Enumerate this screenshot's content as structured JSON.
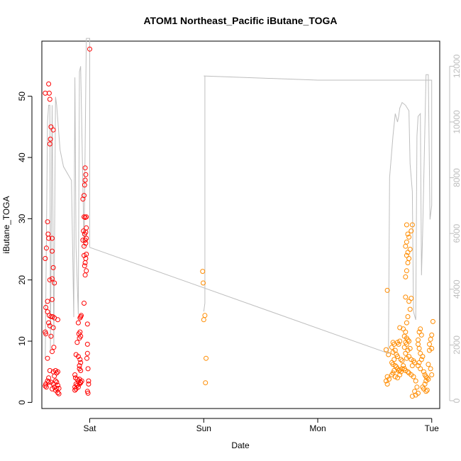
{
  "chart_data": {
    "type": "scatter",
    "title": "ATOM1 Northeast_Pacific iButane_TOGA",
    "xlabel": "Date",
    "ylabel": "iButane_TOGA",
    "x_ticks": [
      "Sat",
      "Sun",
      "Mon",
      "Tue"
    ],
    "x_range_days": [
      -0.42,
      3.07
    ],
    "ylim": [
      -1,
      59
    ],
    "y_ticks": [
      0,
      10,
      20,
      30,
      40,
      50
    ],
    "y2lim": [
      -280,
      12900
    ],
    "y2_ticks": [
      0,
      2000,
      4000,
      6000,
      8000,
      10000,
      12000
    ],
    "y2_color": "#bdbdbd",
    "colors": {
      "red_series": "#ff0000",
      "orange_series": "#ff8c00",
      "line": "#bebebe"
    },
    "series": [
      {
        "color": "#ff0000",
        "points": [
          [
            -0.39,
            50.5
          ],
          [
            -0.36,
            52.0
          ],
          [
            -0.355,
            50.5
          ],
          [
            -0.35,
            49.5
          ],
          [
            -0.34,
            45
          ],
          [
            -0.345,
            43
          ],
          [
            -0.35,
            42.2
          ],
          [
            -0.32,
            44.5
          ],
          [
            -0.37,
            29.5
          ],
          [
            -0.365,
            27.5
          ],
          [
            -0.36,
            26.8
          ],
          [
            -0.33,
            26.8
          ],
          [
            -0.38,
            25.2
          ],
          [
            -0.33,
            24.7
          ],
          [
            -0.39,
            23.5
          ],
          [
            -0.32,
            22.0
          ],
          [
            -0.33,
            20.2
          ],
          [
            -0.35,
            20.0
          ],
          [
            -0.31,
            19.5
          ],
          [
            -0.33,
            16.8
          ],
          [
            -0.37,
            16.5
          ],
          [
            -0.385,
            15.5
          ],
          [
            -0.37,
            14.8
          ],
          [
            -0.355,
            14.2
          ],
          [
            -0.34,
            14.0
          ],
          [
            -0.325,
            14.0
          ],
          [
            -0.31,
            13.8
          ],
          [
            -0.28,
            13.5
          ],
          [
            -0.36,
            13.0
          ],
          [
            -0.35,
            12.5
          ],
          [
            -0.32,
            12.2
          ],
          [
            -0.39,
            11.5
          ],
          [
            -0.385,
            11.2
          ],
          [
            -0.34,
            10.8
          ],
          [
            -0.33,
            8.3
          ],
          [
            -0.315,
            9.0
          ],
          [
            -0.37,
            7.2
          ],
          [
            -0.35,
            5.2
          ],
          [
            -0.32,
            5.0
          ],
          [
            -0.3,
            5.2
          ],
          [
            -0.29,
            4.8
          ],
          [
            -0.28,
            5.0
          ],
          [
            -0.31,
            4.3
          ],
          [
            -0.36,
            4.0
          ],
          [
            -0.37,
            3.5
          ],
          [
            -0.385,
            3.0
          ],
          [
            -0.39,
            2.7
          ],
          [
            -0.38,
            2.5
          ],
          [
            -0.36,
            3.3
          ],
          [
            -0.34,
            3.3
          ],
          [
            -0.32,
            3.0
          ],
          [
            -0.3,
            3.5
          ],
          [
            -0.29,
            3.3
          ],
          [
            -0.28,
            2.8
          ],
          [
            -0.31,
            2.5
          ],
          [
            -0.33,
            2.2
          ],
          [
            -0.3,
            2.0
          ],
          [
            -0.29,
            2.3
          ],
          [
            -0.27,
            2.3
          ],
          [
            -0.28,
            1.6
          ],
          [
            -0.27,
            1.4
          ],
          [
            -0.13,
            4.5
          ],
          [
            -0.125,
            4.0
          ],
          [
            -0.11,
            3.8
          ],
          [
            -0.1,
            3.5
          ],
          [
            -0.09,
            3.8
          ],
          [
            -0.08,
            3.3
          ],
          [
            -0.12,
            3.0
          ],
          [
            -0.11,
            2.8
          ],
          [
            -0.13,
            2.5
          ],
          [
            -0.12,
            2.2
          ],
          [
            -0.1,
            2.5
          ],
          [
            -0.09,
            3.0
          ],
          [
            -0.08,
            3.2
          ],
          [
            -0.07,
            3.5
          ],
          [
            -0.13,
            2.0
          ],
          [
            -0.09,
            6.0
          ],
          [
            -0.08,
            6.5
          ],
          [
            -0.085,
            7.0
          ],
          [
            -0.1,
            7.5
          ],
          [
            -0.12,
            7.8
          ],
          [
            -0.09,
            5.5
          ],
          [
            -0.08,
            5.2
          ],
          [
            -0.11,
            9.8
          ],
          [
            -0.09,
            10.5
          ],
          [
            -0.08,
            10.8
          ],
          [
            -0.095,
            11.2
          ],
          [
            -0.085,
            11.5
          ],
          [
            -0.1,
            13.0
          ],
          [
            -0.085,
            13.8
          ],
          [
            -0.08,
            14.0
          ],
          [
            -0.075,
            14.2
          ],
          [
            -0.05,
            16.2
          ],
          [
            -0.04,
            20.8
          ],
          [
            -0.03,
            21.5
          ],
          [
            -0.045,
            22.3
          ],
          [
            -0.04,
            22.8
          ],
          [
            -0.035,
            23.5
          ],
          [
            -0.05,
            24.0
          ],
          [
            -0.03,
            24.2
          ],
          [
            -0.05,
            25.5
          ],
          [
            -0.035,
            26.0
          ],
          [
            -0.04,
            26.5
          ],
          [
            -0.03,
            26.8
          ],
          [
            -0.045,
            27.5
          ],
          [
            -0.035,
            27.8
          ],
          [
            -0.055,
            28.0
          ],
          [
            -0.03,
            28.5
          ],
          [
            -0.04,
            30.2
          ],
          [
            -0.03,
            30.3
          ],
          [
            -0.05,
            30.3
          ],
          [
            -0.06,
            33.2
          ],
          [
            -0.05,
            33.8
          ],
          [
            -0.045,
            35.5
          ],
          [
            -0.04,
            36.3
          ],
          [
            -0.035,
            37.2
          ],
          [
            -0.04,
            38.3
          ],
          [
            -0.06,
            26.5
          ],
          [
            -0.02,
            12.8
          ],
          [
            -0.02,
            9.5
          ],
          [
            -0.02,
            8.0
          ],
          [
            -0.025,
            7.2
          ],
          [
            -0.015,
            5.5
          ],
          [
            -0.01,
            3.5
          ],
          [
            -0.01,
            3.0
          ],
          [
            -0.02,
            1.8
          ],
          [
            -0.015,
            1.5
          ],
          [
            0.0,
            57.7
          ]
        ]
      },
      {
        "color": "#ff8c00",
        "points": [
          [
            0.99,
            21.4
          ],
          [
            0.995,
            19.5
          ],
          [
            1.01,
            14.2
          ],
          [
            1.0,
            13.5
          ],
          [
            1.02,
            7.2
          ],
          [
            1.015,
            3.2
          ],
          [
            2.61,
            18.3
          ],
          [
            2.6,
            8.6
          ],
          [
            2.62,
            7.8
          ],
          [
            2.61,
            4.2
          ],
          [
            2.625,
            3.8
          ],
          [
            2.6,
            3.5
          ],
          [
            2.61,
            3.0
          ],
          [
            2.66,
            9.8
          ],
          [
            2.67,
            9.5
          ],
          [
            2.65,
            9.0
          ],
          [
            2.68,
            8.5
          ],
          [
            2.66,
            8.2
          ],
          [
            2.69,
            7.8
          ],
          [
            2.7,
            7.5
          ],
          [
            2.67,
            7.0
          ],
          [
            2.65,
            6.5
          ],
          [
            2.66,
            6.2
          ],
          [
            2.68,
            6.0
          ],
          [
            2.69,
            5.8
          ],
          [
            2.7,
            5.5
          ],
          [
            2.71,
            5.2
          ],
          [
            2.72,
            5.3
          ],
          [
            2.67,
            5.2
          ],
          [
            2.66,
            4.8
          ],
          [
            2.65,
            4.5
          ],
          [
            2.68,
            4.2
          ],
          [
            2.7,
            4.0
          ],
          [
            2.72,
            4.5
          ],
          [
            2.73,
            5.0
          ],
          [
            2.74,
            5.5
          ],
          [
            2.75,
            6.0
          ],
          [
            2.74,
            6.8
          ],
          [
            2.73,
            7.0
          ],
          [
            2.71,
            9.5
          ],
          [
            2.7,
            9.8
          ],
          [
            2.72,
            10.0
          ],
          [
            2.72,
            12.2
          ],
          [
            2.75,
            12.0
          ],
          [
            2.77,
            11.5
          ],
          [
            2.76,
            10.8
          ],
          [
            2.78,
            10.5
          ],
          [
            2.79,
            10.2
          ],
          [
            2.8,
            10.0
          ],
          [
            2.77,
            9.8
          ],
          [
            2.78,
            9.5
          ],
          [
            2.76,
            9.0
          ],
          [
            2.81,
            8.8
          ],
          [
            2.79,
            8.5
          ],
          [
            2.77,
            8.0
          ],
          [
            2.8,
            7.5
          ],
          [
            2.78,
            7.2
          ],
          [
            2.82,
            7.0
          ],
          [
            2.84,
            6.8
          ],
          [
            2.85,
            6.5
          ],
          [
            2.83,
            6.0
          ],
          [
            2.76,
            5.5
          ],
          [
            2.77,
            5.2
          ],
          [
            2.79,
            5.0
          ],
          [
            2.8,
            4.8
          ],
          [
            2.82,
            4.5
          ],
          [
            2.84,
            4.2
          ],
          [
            2.86,
            3.5
          ],
          [
            2.87,
            2.5
          ],
          [
            2.85,
            1.8
          ],
          [
            2.88,
            1.5
          ],
          [
            2.86,
            1.2
          ],
          [
            2.83,
            1.0
          ],
          [
            2.78,
            13.0
          ],
          [
            2.79,
            14.0
          ],
          [
            2.81,
            15.2
          ],
          [
            2.8,
            16.5
          ],
          [
            2.82,
            17.0
          ],
          [
            2.77,
            17.2
          ],
          [
            2.77,
            20.5
          ],
          [
            2.78,
            21.5
          ],
          [
            2.79,
            22.8
          ],
          [
            2.8,
            23.5
          ],
          [
            2.78,
            24.0
          ],
          [
            2.79,
            24.5
          ],
          [
            2.81,
            25.0
          ],
          [
            2.77,
            25.5
          ],
          [
            2.78,
            26.2
          ],
          [
            2.8,
            27.0
          ],
          [
            2.79,
            27.5
          ],
          [
            2.82,
            28.0
          ],
          [
            2.83,
            29.0
          ],
          [
            2.78,
            29.0
          ],
          [
            2.88,
            10.2
          ],
          [
            2.89,
            11.5
          ],
          [
            2.9,
            12.0
          ],
          [
            2.91,
            11.0
          ],
          [
            2.88,
            9.5
          ],
          [
            2.89,
            8.8
          ],
          [
            2.9,
            8.0
          ],
          [
            2.92,
            7.5
          ],
          [
            2.91,
            7.0
          ],
          [
            2.89,
            6.5
          ],
          [
            2.88,
            6.0
          ],
          [
            2.9,
            5.5
          ],
          [
            2.93,
            5.0
          ],
          [
            2.94,
            4.5
          ],
          [
            2.95,
            4.2
          ],
          [
            2.96,
            4.0
          ],
          [
            2.97,
            3.8
          ],
          [
            2.95,
            3.5
          ],
          [
            2.94,
            3.0
          ],
          [
            2.92,
            2.5
          ],
          [
            2.93,
            2.2
          ],
          [
            2.96,
            2.0
          ],
          [
            2.95,
            1.8
          ],
          [
            2.97,
            6.2
          ],
          [
            2.98,
            9.5
          ],
          [
            2.99,
            10.3
          ],
          [
            3.0,
            11.0
          ],
          [
            3.01,
            13.2
          ],
          [
            3.0,
            4.5
          ],
          [
            2.99,
            5.5
          ],
          [
            2.98,
            8.5
          ],
          [
            3.0,
            8.8
          ]
        ]
      }
    ],
    "line_y2": [
      [
        -0.39,
        1500
      ],
      [
        -0.37,
        10000
      ],
      [
        -0.36,
        10600
      ],
      [
        -0.35,
        10600
      ],
      [
        -0.345,
        1800
      ],
      [
        -0.33,
        10600
      ],
      [
        -0.315,
        2000
      ],
      [
        -0.3,
        10900
      ],
      [
        -0.29,
        10600
      ],
      [
        -0.26,
        9000
      ],
      [
        -0.23,
        8400
      ],
      [
        -0.16,
        7900
      ],
      [
        -0.14,
        3000
      ],
      [
        -0.13,
        11600
      ],
      [
        -0.12,
        5500
      ],
      [
        -0.1,
        3100
      ],
      [
        -0.09,
        11800
      ],
      [
        -0.08,
        12000
      ],
      [
        -0.05,
        5500
      ],
      [
        -0.03,
        13000
      ],
      [
        0.0,
        13000
      ],
      [
        0.0,
        5500
      ],
      [
        2.62,
        1700
      ],
      [
        2.63,
        8000
      ],
      [
        2.66,
        9500
      ],
      [
        2.68,
        10300
      ],
      [
        2.7,
        10000
      ],
      [
        2.71,
        10200
      ],
      [
        2.72,
        10500
      ],
      [
        2.74,
        10700
      ],
      [
        2.77,
        10600
      ],
      [
        2.8,
        10400
      ],
      [
        2.81,
        8500
      ],
      [
        2.83,
        7500
      ],
      [
        2.84,
        3200
      ],
      [
        2.86,
        2900
      ],
      [
        2.87,
        9500
      ],
      [
        2.88,
        10200
      ],
      [
        2.9,
        10300
      ],
      [
        2.91,
        4500
      ],
      [
        2.92,
        6000
      ],
      [
        2.95,
        11700
      ],
      [
        2.97,
        11700
      ],
      [
        2.985,
        6500
      ],
      [
        3.0,
        7000
      ],
      [
        3.0,
        11500
      ],
      [
        2.0,
        11500
      ],
      [
        1.0,
        11650
      ],
      [
        1.01,
        11650
      ],
      [
        1.01,
        3500
      ],
      [
        1.0,
        3200
      ]
    ]
  }
}
